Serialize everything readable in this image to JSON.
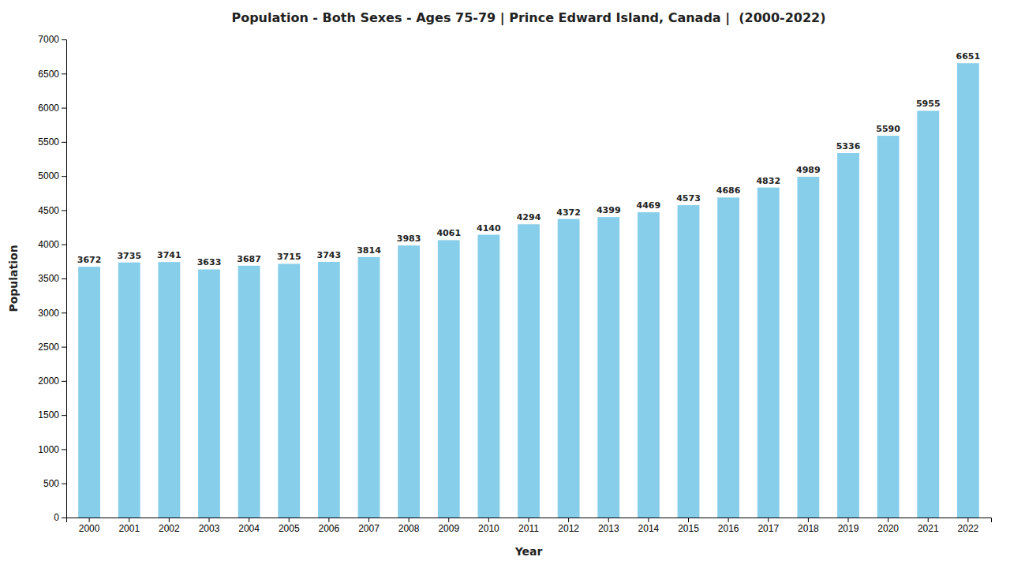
{
  "chart_data": {
    "type": "bar",
    "title": "Population - Both Sexes - Ages 75-79 | Prince Edward Island, Canada |  (2000-2022)",
    "x_label": "Year",
    "y_label": "Population",
    "categories": [
      "2000",
      "2001",
      "2002",
      "2003",
      "2004",
      "2005",
      "2006",
      "2007",
      "2008",
      "2009",
      "2010",
      "2011",
      "2012",
      "2013",
      "2014",
      "2015",
      "2016",
      "2017",
      "2018",
      "2019",
      "2020",
      "2021",
      "2022"
    ],
    "values": [
      3672,
      3735,
      3741,
      3633,
      3687,
      3715,
      3743,
      3814,
      3983,
      4061,
      4140,
      4294,
      4372,
      4399,
      4469,
      4573,
      4686,
      4832,
      4989,
      5336,
      5590,
      5955,
      6651
    ],
    "color": "#87CEEB",
    "ylim": [
      0,
      7000
    ],
    "yticks": [
      0,
      500,
      1000,
      1500,
      2000,
      2500,
      3000,
      3500,
      4000,
      4500,
      5000,
      5500,
      6000,
      6500,
      7000
    ],
    "grid": false,
    "data_labels": true
  }
}
